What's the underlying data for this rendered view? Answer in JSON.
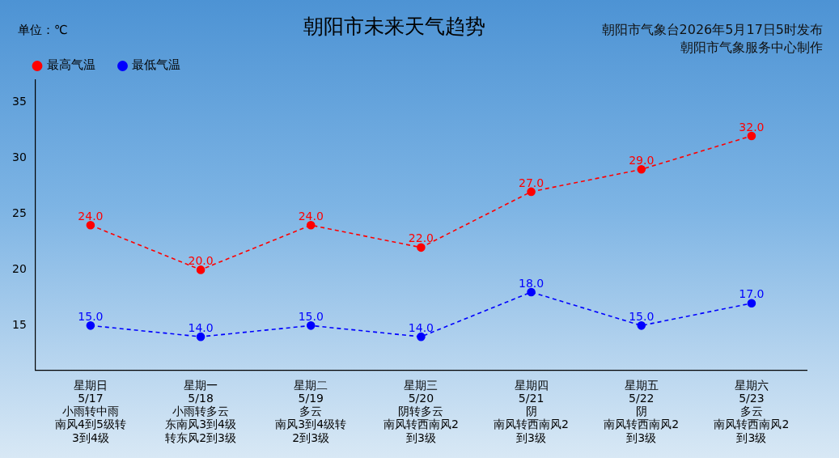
{
  "chart_data": {
    "type": "line",
    "title": "朝阳市未来天气趋势",
    "subtitle": [
      "朝阳市气象台2026年5月17日5时发布",
      "朝阳市气象服务中心制作"
    ],
    "y_label": "单位：℃",
    "categories": [
      [
        "星期日",
        "5/17",
        "小雨转中雨",
        "南风4到5级转",
        "3到4级"
      ],
      [
        "星期一",
        "5/18",
        "小雨转多云",
        "东南风3到4级",
        "转东风2到3级"
      ],
      [
        "星期二",
        "5/19",
        "多云",
        "南风3到4级转",
        "2到3级"
      ],
      [
        "星期三",
        "5/20",
        "阴转多云",
        "南风转西南风2",
        "到3级"
      ],
      [
        "星期四",
        "5/21",
        "阴",
        "南风转西南风2",
        "到3级"
      ],
      [
        "星期五",
        "5/22",
        "阴",
        "南风转西南风2",
        "到3级"
      ],
      [
        "星期六",
        "5/23",
        "多云",
        "南风转西南风2",
        "到3级"
      ]
    ],
    "series": [
      {
        "name": "最高气温",
        "color": "#ff0000",
        "marker": "circle",
        "line_style": "dashed",
        "values": [
          24,
          20,
          24,
          22,
          27,
          29,
          32
        ],
        "value_labels": [
          "24.0",
          "20.0",
          "24.0",
          "22.0",
          "27.0",
          "29.0",
          "32.0"
        ]
      },
      {
        "name": "最低气温",
        "color": "#0000ff",
        "marker": "circle",
        "line_style": "dashed",
        "values": [
          15,
          14,
          15,
          14,
          18,
          15,
          17
        ],
        "value_labels": [
          "15.0",
          "14.0",
          "15.0",
          "14.0",
          "18.0",
          "15.0",
          "17.0"
        ]
      }
    ],
    "ylim": [
      11,
      37
    ],
    "yticks": [
      15,
      20,
      25,
      30,
      35
    ],
    "grid": false,
    "legend": "upper left",
    "data_labels": true
  }
}
